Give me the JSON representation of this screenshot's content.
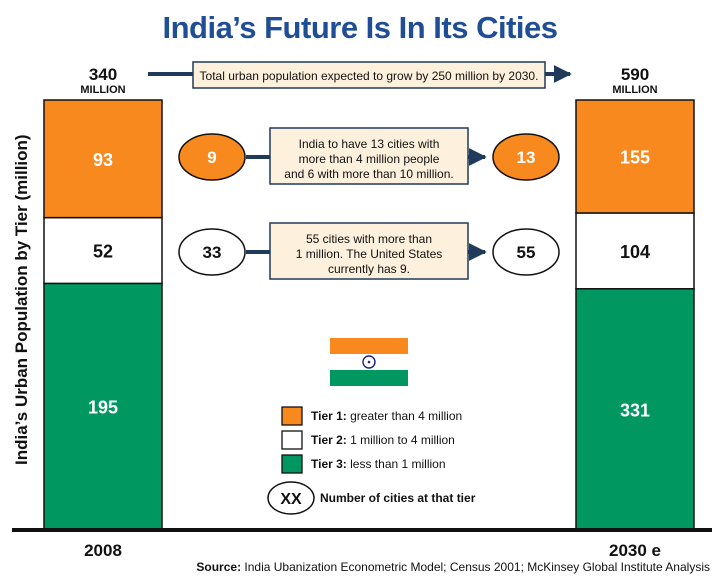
{
  "title": "India’s Future Is In Its Cities",
  "chart_data": {
    "type": "bar",
    "stacked": true,
    "ylabel": "India’s Urban Population by Tier (million)",
    "categories": [
      "2008",
      "2030 e"
    ],
    "totals": [
      {
        "value": "340",
        "unit": "MILLION"
      },
      {
        "value": "590",
        "unit": "MILLION"
      }
    ],
    "series": [
      {
        "name": "Tier 1",
        "values": [
          93,
          155
        ],
        "color": "#f7891f"
      },
      {
        "name": "Tier 2",
        "values": [
          52,
          104
        ],
        "color": "#ffffff"
      },
      {
        "name": "Tier 3",
        "values": [
          195,
          331
        ],
        "color": "#009760"
      }
    ],
    "growth_note": "Total urban population expected to grow by 250 million by 2030.",
    "city_counts": [
      {
        "from": "9",
        "to": "13",
        "note": [
          "India to have 13 cities with",
          "more than 4 million people",
          "and 6 with more than 10 million."
        ],
        "color": "#f7891f"
      },
      {
        "from": "33",
        "to": "55",
        "note": [
          "55 cities with more than",
          "1 million. The United States",
          "currently has 9."
        ],
        "color": "#ffffff"
      }
    ],
    "legend": [
      {
        "bold": "Tier 1:",
        "text": " greater than 4 million",
        "color": "#f7891f"
      },
      {
        "bold": "Tier 2:",
        "text": " 1 million to 4 million",
        "color": "#ffffff"
      },
      {
        "bold": "Tier 3:",
        "text": " less than 1 million",
        "color": "#009760"
      }
    ],
    "legend_cities": {
      "symbol": "XX",
      "text": "Number of cities at that tier"
    }
  },
  "colors": {
    "title": "#1f4e96",
    "note_bg": "#fdf0dc",
    "flag_saffron": "#f7891f",
    "flag_green": "#009760",
    "chakra": "#1a237e"
  },
  "source": {
    "label": "Source:",
    "text": " India Ubanization Econometric Model; Census 2001; McKinsey Global Institute Analysis"
  }
}
